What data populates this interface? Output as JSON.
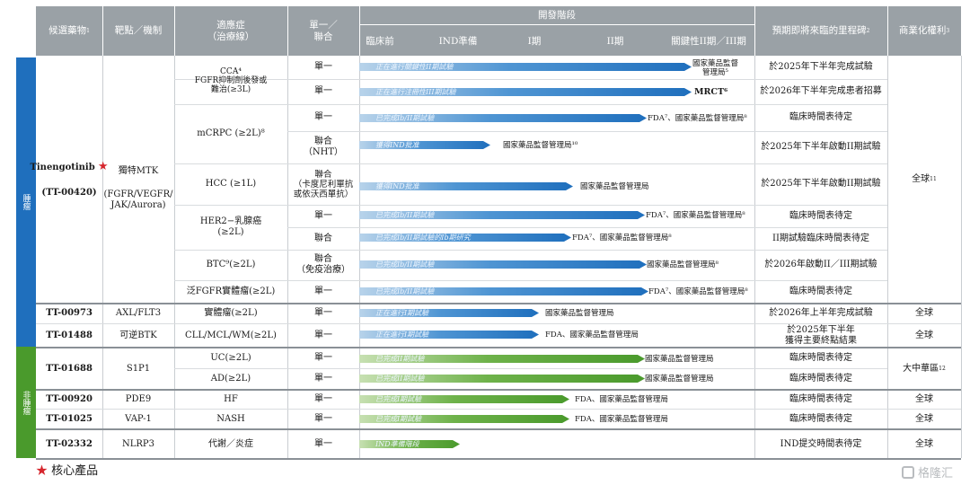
{
  "header": {
    "candidate": "候選藥物",
    "candidate_sup": "1",
    "target": "靶點／機制",
    "indication": "適應症\n（治療線）",
    "regimen": "單一／\n聯合",
    "stage_group": "開發階段",
    "stages": [
      "臨床前",
      "IND準備",
      "I期",
      "II期",
      "關鍵性II期／III期"
    ],
    "milestone": "預期即將來臨的里程碑",
    "milestone_sup": "2",
    "rights": "商業化權利",
    "rights_sup": "3"
  },
  "sidebar": {
    "oncology": "腫瘤",
    "non_oncology": "非腫瘤"
  },
  "tinengo": {
    "name": "Tinengotinib",
    "code": "(TT-00420)",
    "star": "★",
    "target_top": "獨特MTK",
    "target_bottom": "(FGFR/VEGFR/\nJAK/Aurora)",
    "rights": "全球",
    "rights_sup": "11"
  },
  "rows": [
    {
      "indication": "CCA⁴\nFGFR抑制劑後發或\n難治(≥3L)",
      "regimen": "單一",
      "bar_text": "正在進行關鍵性II期試驗",
      "agency": "國家藥品監督\n管理局⁵",
      "milestone": "於2025年下半年完成試驗"
    },
    {
      "indication": "",
      "regimen": "單一",
      "bar_text": "正在進行注冊性III期試驗",
      "agency": "MRCT⁶",
      "milestone": "於2026年下半年完成患者招募"
    },
    {
      "indication": "mCRPC (≥2L)⁸",
      "regimen": "單一",
      "bar_text": "已完成Ib/II期試驗",
      "agency": "FDA⁷、國家藥品監督管理局⁸",
      "milestone": "臨床時間表待定"
    },
    {
      "indication": "",
      "regimen": "聯合\n（NHT）",
      "bar_text": "獲得IND批准",
      "agency": "國家藥品監督管理局¹⁰",
      "milestone": "於2025年下半年啟動II期試驗"
    },
    {
      "indication": "HCC (≥1L)",
      "regimen": "聯合\n（卡度尼利單抗\n或依沃西單抗）",
      "bar_text": "獲得IND批准",
      "agency": "國家藥品監督管理局",
      "milestone": "於2025年下半年啟動II期試驗"
    },
    {
      "indication": "HER2−乳腺癌\n(≥2L)",
      "regimen": "單一",
      "bar_text": "已完成Ib/II期試驗",
      "agency": "FDA⁷、國家藥品監督管理局⁸",
      "milestone": "臨床時間表待定"
    },
    {
      "indication": "",
      "regimen": "聯合",
      "bar_text": "已完成Ib/II期試驗的Ib期研究",
      "agency": "FDA⁷、國家藥品監督管理局⁸",
      "milestone": "II期試驗臨床時間表待定"
    },
    {
      "indication": "BTC⁹(≥2L)",
      "regimen": "聯合\n（免疫治療）",
      "bar_text": "已完成Ib/II期試驗",
      "agency": "國家藥品監督管理局⁸",
      "milestone": "於2026年啟動II／III期試驗"
    },
    {
      "indication": "泛FGFR實體瘤(≥2L)",
      "regimen": "單一",
      "bar_text": "已完成Ib/II期試驗",
      "agency": "FDA⁷、國家藥品監督管理局⁸",
      "milestone": "臨床時間表待定"
    }
  ],
  "others": [
    {
      "name": "TT-00973",
      "target": "AXL/FLT3",
      "indication": "實體瘤(≥2L)",
      "regimen": "單一",
      "bar_text": "正在進行I期試驗",
      "agency": "國家藥品監督管理局",
      "milestone": "於2026年上半年完成試驗",
      "rights": "全球"
    },
    {
      "name": "TT-01488",
      "target": "可逆BTK",
      "indication": "CLL/MCL/WM(≥2L)",
      "regimen": "單一",
      "bar_text": "正在進行I期試驗",
      "agency": "FDA、國家藥品監督管理局",
      "milestone": "於2025年下半年\n獲得主要終點結果",
      "rights": "全球"
    }
  ],
  "s1p1": {
    "name": "TT-01688",
    "target": "S1P1",
    "rights": "大中華區",
    "rights_sup": "12",
    "rows": [
      {
        "indication": "UC(≥2L)",
        "regimen": "單一",
        "bar_text": "已完成II期試驗",
        "agency": "國家藥品監督管理局",
        "milestone": "臨床時間表待定"
      },
      {
        "indication": "AD(≥2L)",
        "regimen": "單一",
        "bar_text": "已完成II期試驗",
        "agency": "國家藥品監督管理局",
        "milestone": "臨床時間表待定"
      }
    ]
  },
  "non_onc": [
    {
      "name": "TT-00920",
      "target": "PDE9",
      "indication": "HF",
      "regimen": "單一",
      "bar_text": "已完成I期試驗",
      "agency": "FDA、國家藥品監督管理局",
      "milestone": "臨床時間表待定",
      "rights": "全球"
    },
    {
      "name": "TT-01025",
      "target": "VAP-1",
      "indication": "NASH",
      "regimen": "單一",
      "bar_text": "已完成I期試驗",
      "agency": "FDA、國家藥品監督管理局",
      "milestone": "臨床時間表待定",
      "rights": "全球"
    },
    {
      "name": "TT-02332",
      "target": "NLRP3",
      "indication": "代謝／炎症",
      "regimen": "單一",
      "bar_text": "IND準備階段",
      "agency": "",
      "milestone": "IND提交時間表待定",
      "rights": "全球"
    }
  ],
  "footer": {
    "star": "★",
    "core": "核心產品"
  },
  "watermark": "格隆汇",
  "colors": {
    "header": "#9aa1a6",
    "oncology": "#1f6fbd",
    "non_oncology": "#4a9a2c",
    "star": "#d6262d"
  }
}
